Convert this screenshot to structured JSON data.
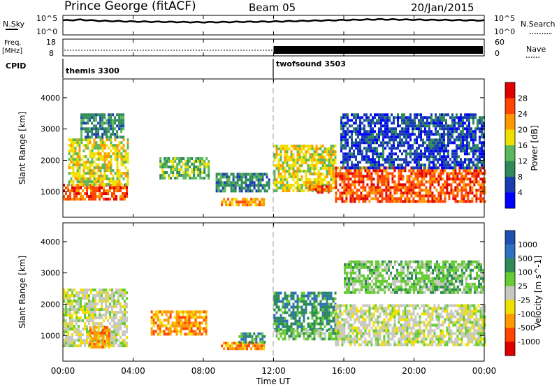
{
  "header": {
    "station": "Prince George (fitACF)",
    "beam": "Beam 05",
    "date": "20/Jan/2015"
  },
  "status_panels": {
    "sky_label": "N.Sky",
    "search_label": "N.Search",
    "sky_ticks": [
      "10^5",
      "10^0"
    ],
    "search_ticks": [
      "10^5",
      "10^0"
    ],
    "freq_label_1": "Freq.",
    "freq_label_2": "[MHz]",
    "freq_ticks": [
      "18",
      "8"
    ],
    "nave_label": "Nave",
    "nave_ticks": [
      "60",
      "0"
    ],
    "cpid_label": "CPID",
    "cpid_programs": [
      {
        "name": "themis 3300",
        "start_hour": 0
      },
      {
        "name": "twofsound 3503",
        "start_hour": 12
      }
    ]
  },
  "x_axis": {
    "label": "Time UT",
    "ticks": [
      "00:00",
      "04:00",
      "08:00",
      "12:00",
      "16:00",
      "20:00",
      "00:00"
    ],
    "range_hours": [
      0,
      24
    ]
  },
  "power_panel": {
    "ylabel": "Slant Range [km]",
    "yticks": [
      "1000",
      "2000",
      "3000",
      "4000"
    ],
    "ylim": [
      180,
      4600
    ],
    "colorbar_label": "Power [dB]",
    "colorbar_ticks": [
      "4",
      "8",
      "12",
      "16",
      "20",
      "24",
      "28"
    ],
    "colors": [
      "#0000ff",
      "#1a3cb3",
      "#2e8b57",
      "#5cb85c",
      "#f0e000",
      "#ff9900",
      "#ff4500",
      "#e00000"
    ]
  },
  "velocity_panel": {
    "ylabel": "Slant Range [km]",
    "yticks": [
      "1000",
      "2000",
      "3000",
      "4000"
    ],
    "ylim": [
      180,
      4600
    ],
    "colorbar_label": "Velocity [m s^-1]",
    "colorbar_ticks": [
      "1000",
      "500",
      "100",
      "25",
      "-25",
      "-100",
      "-500",
      "-1000"
    ],
    "colors": [
      "#1f4fb0",
      "#2f6fc0",
      "#2e8b57",
      "#66cc33",
      "#c8c8c0",
      "#f0e000",
      "#ff9900",
      "#ff4500",
      "#e00000"
    ]
  },
  "chart_data": [
    {
      "type": "line",
      "title": "N.Sky / N.Search",
      "x_hours": [
        0,
        1,
        2,
        4,
        6,
        8,
        10,
        12,
        14,
        16,
        18,
        20,
        22,
        24
      ],
      "series": [
        {
          "name": "N.Sky",
          "values": [
            3.8,
            4.0,
            3.7,
            3.5,
            3.4,
            3.3,
            3.4,
            3.5,
            3.7,
            3.9,
            4.1,
            4.0,
            3.9,
            3.8
          ]
        }
      ],
      "ylim": [
        0,
        5
      ]
    },
    {
      "type": "line",
      "title": "Freq. / Nave",
      "x_hours": [
        0,
        12,
        12,
        24
      ],
      "series": [
        {
          "name": "Freq.",
          "values": [
            10.5,
            10.5,
            10.5,
            10.5
          ]
        }
      ],
      "nave_high_from_hour": 12,
      "ylim": [
        8,
        18
      ]
    },
    {
      "type": "heatmap",
      "title": "Power [dB]",
      "xlim": [
        0,
        24
      ],
      "ylim": [
        180,
        4600
      ],
      "regions": [
        {
          "t0": 0.0,
          "t1": 3.7,
          "r0": 750,
          "r1": 1250,
          "level": 6
        },
        {
          "t0": 0.3,
          "t1": 3.7,
          "r0": 1250,
          "r1": 2700,
          "level": 4
        },
        {
          "t0": 1.0,
          "t1": 3.5,
          "r0": 2700,
          "r1": 3500,
          "level": 2
        },
        {
          "t0": 5.5,
          "t1": 8.3,
          "r0": 1400,
          "r1": 2100,
          "level": 3
        },
        {
          "t0": 8.7,
          "t1": 11.8,
          "r0": 1000,
          "r1": 1600,
          "level": 2
        },
        {
          "t0": 9.0,
          "t1": 11.5,
          "r0": 600,
          "r1": 800,
          "level": 5
        },
        {
          "t0": 12.0,
          "t1": 15.5,
          "r0": 1000,
          "r1": 2500,
          "level": 4
        },
        {
          "t0": 14.0,
          "t1": 15.2,
          "r0": 1000,
          "r1": 1200,
          "level": 6
        },
        {
          "t0": 15.5,
          "t1": 24.0,
          "r0": 700,
          "r1": 1800,
          "level": 6
        },
        {
          "t0": 15.8,
          "t1": 24.0,
          "r0": 1800,
          "r1": 3500,
          "level": 1
        }
      ]
    },
    {
      "type": "heatmap",
      "title": "Velocity [m s^-1]",
      "xlim": [
        0,
        24
      ],
      "ylim": [
        180,
        4600
      ],
      "regions": [
        {
          "t0": 0.0,
          "t1": 3.6,
          "r0": 700,
          "r1": 2500,
          "level": 4
        },
        {
          "t0": 1.5,
          "t1": 2.6,
          "r0": 600,
          "r1": 1300,
          "level": 6
        },
        {
          "t0": 5.0,
          "t1": 8.2,
          "r0": 1000,
          "r1": 1800,
          "level": 6
        },
        {
          "t0": 9.0,
          "t1": 11.5,
          "r0": 600,
          "r1": 800,
          "level": 6
        },
        {
          "t0": 10.0,
          "t1": 11.5,
          "r0": 800,
          "r1": 1100,
          "level": 2
        },
        {
          "t0": 12.0,
          "t1": 15.5,
          "r0": 1200,
          "r1": 2400,
          "level": 2
        },
        {
          "t0": 12.0,
          "t1": 15.8,
          "r0": 900,
          "r1": 1200,
          "level": 3
        },
        {
          "t0": 15.5,
          "t1": 24.0,
          "r0": 700,
          "r1": 2000,
          "level": 4
        },
        {
          "t0": 16.0,
          "t1": 24.0,
          "r0": 2400,
          "r1": 3400,
          "level": 3
        }
      ]
    }
  ]
}
